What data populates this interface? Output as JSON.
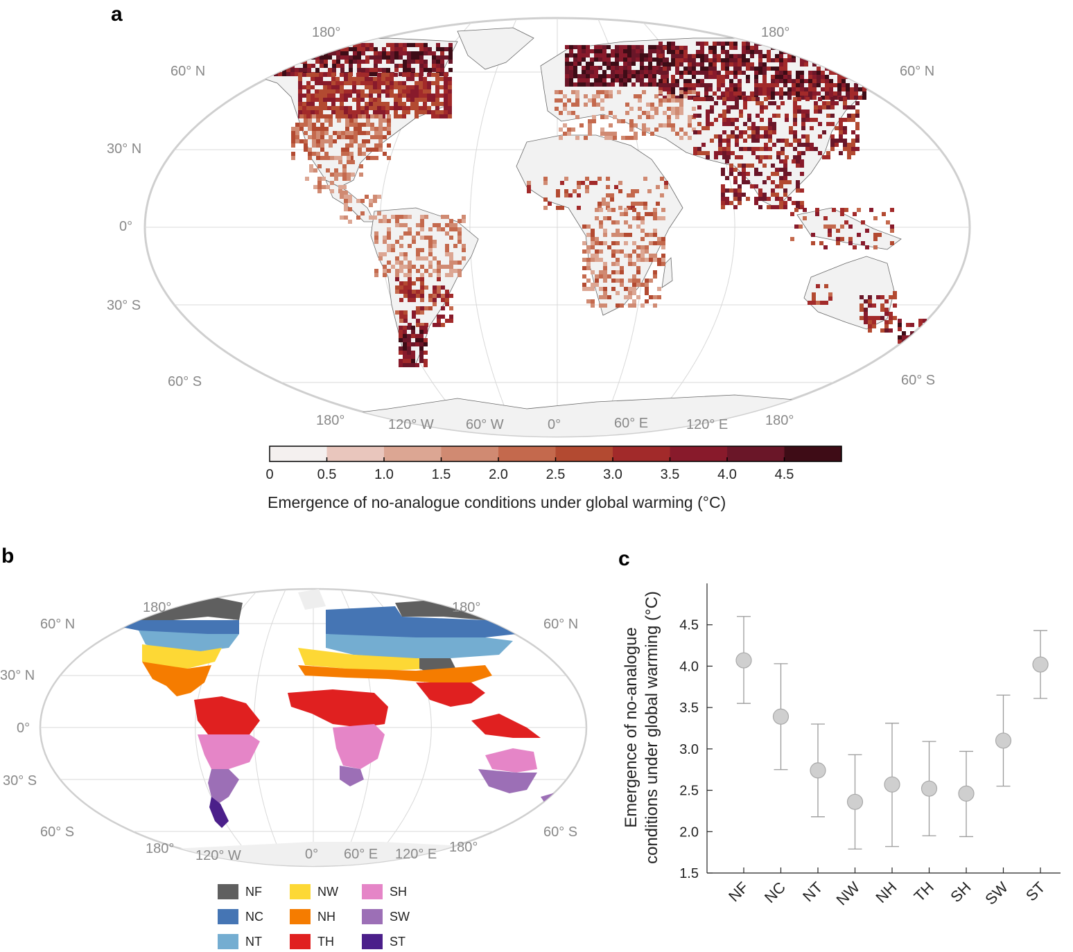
{
  "panels": {
    "a": "a",
    "b": "b",
    "c": "c"
  },
  "map_a": {
    "lat_labels_left": [
      "60° N",
      "30° N",
      "0°",
      "30° S",
      "60° S"
    ],
    "lat_labels_right": [
      "60° N",
      "60° S"
    ],
    "lon_labels_top": [
      "180°",
      "180°"
    ],
    "lon_labels_bottom": [
      "180°",
      "120° W",
      "60° W",
      "0°",
      "60° E",
      "120° E",
      "180°"
    ],
    "colorbar": {
      "ticks": [
        "0",
        "0.5",
        "1.0",
        "1.5",
        "2.0",
        "2.5",
        "3.0",
        "3.5",
        "4.0",
        "4.5"
      ],
      "colors": [
        "#f4f0ef",
        "#e9c6bd",
        "#dca693",
        "#d08a72",
        "#c4694d",
        "#b34a31",
        "#a22a2a",
        "#881a2b",
        "#6a1628",
        "#3e0c16"
      ],
      "title": "Emergence of no-analogue conditions under global warming (°C)"
    },
    "ocean_color": "#ffffff",
    "land_color": "#f2f2f2"
  },
  "map_b": {
    "lat_labels_left": [
      "60° N",
      "30° N",
      "0°",
      "30° S",
      "60° S"
    ],
    "lat_labels_right": [
      "60° N",
      "60° S"
    ],
    "lon_labels_top": [
      "180°",
      "180°"
    ],
    "lon_labels_bottom": [
      "180°",
      "120° W",
      "0°",
      "60° E",
      "120° E",
      "180°"
    ],
    "legend": [
      {
        "code": "NF",
        "color": "#5f5f5f"
      },
      {
        "code": "NC",
        "color": "#4575b4"
      },
      {
        "code": "NT",
        "color": "#74add1"
      },
      {
        "code": "NW",
        "color": "#fdd835"
      },
      {
        "code": "NH",
        "color": "#f57c00"
      },
      {
        "code": "TH",
        "color": "#e02020"
      },
      {
        "code": "SH",
        "color": "#e585c7"
      },
      {
        "code": "SW",
        "color": "#9c6fb6"
      },
      {
        "code": "ST",
        "color": "#4b1f8a"
      }
    ]
  },
  "chart_data": {
    "type": "scatter",
    "categories": [
      "NF",
      "NC",
      "NT",
      "NW",
      "NH",
      "TH",
      "SH",
      "SW",
      "ST"
    ],
    "values": [
      4.07,
      3.39,
      2.74,
      2.36,
      2.57,
      2.52,
      2.46,
      3.1,
      4.02
    ],
    "error_low": [
      3.55,
      2.75,
      2.18,
      1.79,
      1.82,
      1.95,
      1.94,
      2.55,
      3.61
    ],
    "error_high": [
      4.6,
      4.03,
      3.3,
      2.93,
      3.31,
      3.09,
      2.97,
      3.65,
      4.43
    ],
    "ylabel_line1": "Emergence of no-analogue",
    "ylabel_line2": "conditions under global warming (°C)",
    "yticks": [
      "1.5",
      "2.0",
      "2.5",
      "3.0",
      "3.5",
      "4.0",
      "4.5"
    ],
    "ylim": [
      1.5,
      5.0
    ],
    "marker_color": "#cfcfcf"
  }
}
